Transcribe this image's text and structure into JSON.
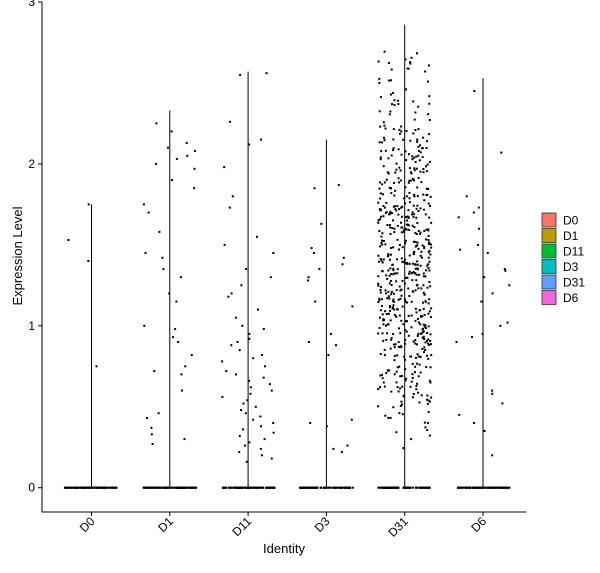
{
  "chart_data": {
    "type": "violin-jitter",
    "xlabel": "Identity",
    "ylabel": "Expression Level",
    "ylim": [
      -0.15,
      3.0
    ],
    "yticks": [
      0,
      1,
      2,
      3
    ],
    "ytick_labels": [
      "0",
      "1",
      "2",
      "3"
    ],
    "categories": [
      "D0",
      "D1",
      "D11",
      "D3",
      "D31",
      "D6"
    ],
    "legend": {
      "position": "right",
      "entries": [
        {
          "label": "D0",
          "color": "#F8766D"
        },
        {
          "label": "D1",
          "color": "#B79F00"
        },
        {
          "label": "D11",
          "color": "#00BA38"
        },
        {
          "label": "D3",
          "color": "#00BFC4"
        },
        {
          "label": "D31",
          "color": "#619CFF"
        },
        {
          "label": "D6",
          "color": "#F564E3"
        }
      ]
    },
    "series": [
      {
        "category": "D0",
        "max": 1.75,
        "expressing_points": [
          1.75,
          1.53,
          1.4,
          0.75
        ]
      },
      {
        "category": "D1",
        "max": 2.33,
        "expressing_points": [
          2.25,
          2.2,
          2.13,
          2.1,
          2.08,
          2.05,
          2.03,
          2.0,
          1.97,
          1.9,
          1.85,
          1.75,
          1.7,
          1.58,
          1.45,
          1.42,
          1.35,
          1.3,
          1.2,
          1.15,
          1.0,
          0.98,
          0.93,
          0.9,
          0.82,
          0.75,
          0.72,
          0.7,
          0.6,
          0.46,
          0.43,
          0.37,
          0.33,
          0.3,
          0.27
        ]
      },
      {
        "category": "D11",
        "max": 2.57,
        "expressing_points": [
          2.56,
          2.55,
          2.26,
          2.15,
          2.12,
          1.98,
          1.8,
          1.73,
          1.55,
          1.5,
          1.45,
          1.35,
          1.3,
          1.25,
          1.2,
          1.18,
          1.1,
          1.05,
          1.0,
          0.98,
          0.95,
          0.92,
          0.9,
          0.88,
          0.85,
          0.82,
          0.8,
          0.78,
          0.75,
          0.72,
          0.7,
          0.68,
          0.66,
          0.64,
          0.62,
          0.6,
          0.58,
          0.56,
          0.54,
          0.52,
          0.5,
          0.48,
          0.46,
          0.44,
          0.42,
          0.4,
          0.38,
          0.36,
          0.34,
          0.32,
          0.3,
          0.28,
          0.26,
          0.24,
          0.22,
          0.2,
          0.18,
          0.16
        ]
      },
      {
        "category": "D3",
        "max": 2.15,
        "expressing_points": [
          1.87,
          1.85,
          1.63,
          1.48,
          1.45,
          1.42,
          1.38,
          1.35,
          1.3,
          1.28,
          1.15,
          1.12,
          0.95,
          0.9,
          0.88,
          0.82,
          0.42,
          0.4,
          0.38,
          0.26,
          0.24,
          0.22
        ]
      },
      {
        "category": "D31",
        "max": 2.86,
        "expressing_points": []
      },
      {
        "category": "D6",
        "max": 2.53,
        "expressing_points": [
          2.45,
          2.07,
          1.8,
          1.73,
          1.7,
          1.67,
          1.6,
          1.5,
          1.47,
          1.45,
          1.35,
          1.34,
          1.3,
          1.25,
          1.2,
          1.15,
          1.02,
          1.0,
          0.95,
          0.93,
          0.9,
          0.6,
          0.58,
          0.52,
          0.45,
          0.4,
          0.35,
          0.2
        ]
      }
    ],
    "dense_cluster": {
      "category": "D31",
      "count": 620,
      "y_min": 0.22,
      "y_max": 2.7,
      "mode": 0.75
    },
    "zero_points_per_category": 90,
    "jitter_width": 0.4
  }
}
